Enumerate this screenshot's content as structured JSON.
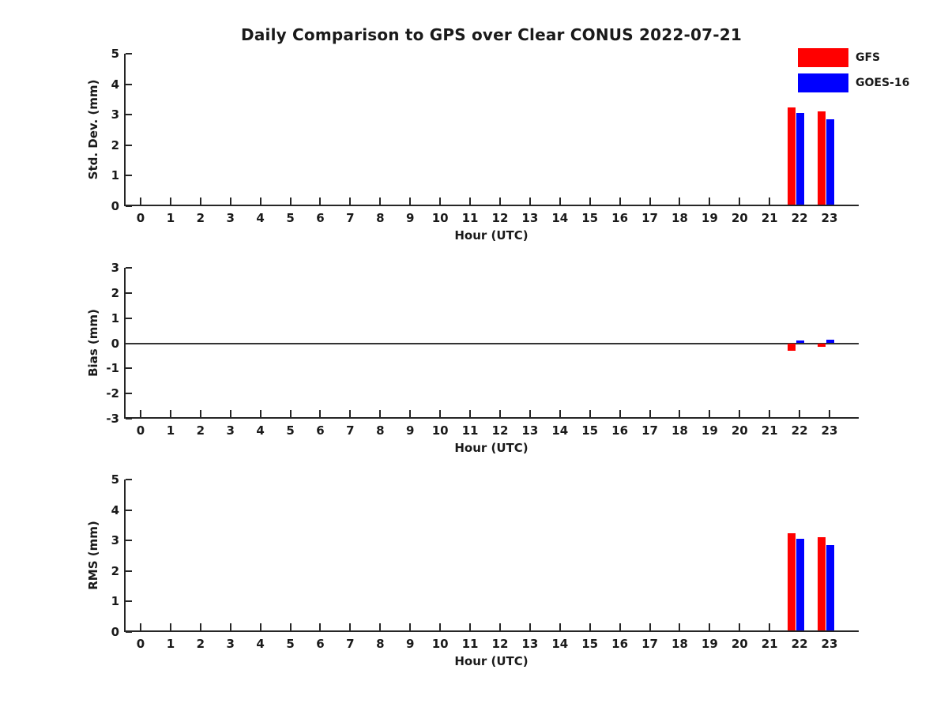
{
  "title": "Daily Comparison to GPS over Clear CONUS 2022-07-21",
  "legend": {
    "position": "top-right-outside",
    "items": [
      {
        "label": "GFS",
        "color": "#ff0000"
      },
      {
        "label": "GOES-16",
        "color": "#0000ff"
      }
    ]
  },
  "chart_data": [
    {
      "type": "bar",
      "panel": "std_dev",
      "ylabel": "Std. Dev. (mm)",
      "xlabel": "Hour (UTC)",
      "ylim": [
        0,
        5
      ],
      "yticks": [
        0,
        1,
        2,
        3,
        4,
        5
      ],
      "grid": false,
      "categories": [
        "0",
        "1",
        "2",
        "3",
        "4",
        "5",
        "6",
        "7",
        "8",
        "9",
        "10",
        "11",
        "12",
        "13",
        "14",
        "15",
        "16",
        "17",
        "18",
        "19",
        "20",
        "21",
        "22",
        "23"
      ],
      "series": [
        {
          "name": "GFS",
          "color": "#ff0000",
          "values": [
            null,
            null,
            null,
            null,
            null,
            null,
            null,
            null,
            null,
            null,
            null,
            null,
            null,
            null,
            null,
            null,
            null,
            null,
            null,
            null,
            null,
            null,
            3.25,
            3.1
          ]
        },
        {
          "name": "GOES-16",
          "color": "#0000ff",
          "values": [
            null,
            null,
            null,
            null,
            null,
            null,
            null,
            null,
            null,
            null,
            null,
            null,
            null,
            null,
            null,
            null,
            null,
            null,
            null,
            null,
            null,
            null,
            3.05,
            2.85
          ]
        }
      ]
    },
    {
      "type": "bar",
      "panel": "bias",
      "ylabel": "Bias (mm)",
      "xlabel": "Hour (UTC)",
      "ylim": [
        -3,
        3
      ],
      "yticks": [
        -3,
        -2,
        -1,
        0,
        1,
        2,
        3
      ],
      "zero_line": true,
      "grid": false,
      "categories": [
        "0",
        "1",
        "2",
        "3",
        "4",
        "5",
        "6",
        "7",
        "8",
        "9",
        "10",
        "11",
        "12",
        "13",
        "14",
        "15",
        "16",
        "17",
        "18",
        "19",
        "20",
        "21",
        "22",
        "23"
      ],
      "series": [
        {
          "name": "GFS",
          "color": "#ff0000",
          "values": [
            null,
            null,
            null,
            null,
            null,
            null,
            null,
            null,
            null,
            null,
            null,
            null,
            null,
            null,
            null,
            null,
            null,
            null,
            null,
            null,
            null,
            null,
            -0.3,
            -0.15
          ]
        },
        {
          "name": "GOES-16",
          "color": "#0000ff",
          "values": [
            null,
            null,
            null,
            null,
            null,
            null,
            null,
            null,
            null,
            null,
            null,
            null,
            null,
            null,
            null,
            null,
            null,
            null,
            null,
            null,
            null,
            null,
            0.1,
            0.15
          ]
        }
      ]
    },
    {
      "type": "bar",
      "panel": "rms",
      "ylabel": "RMS (mm)",
      "xlabel": "Hour (UTC)",
      "ylim": [
        0,
        5
      ],
      "yticks": [
        0,
        1,
        2,
        3,
        4,
        5
      ],
      "grid": false,
      "categories": [
        "0",
        "1",
        "2",
        "3",
        "4",
        "5",
        "6",
        "7",
        "8",
        "9",
        "10",
        "11",
        "12",
        "13",
        "14",
        "15",
        "16",
        "17",
        "18",
        "19",
        "20",
        "21",
        "22",
        "23"
      ],
      "series": [
        {
          "name": "GFS",
          "color": "#ff0000",
          "values": [
            null,
            null,
            null,
            null,
            null,
            null,
            null,
            null,
            null,
            null,
            null,
            null,
            null,
            null,
            null,
            null,
            null,
            null,
            null,
            null,
            null,
            null,
            3.25,
            3.1
          ]
        },
        {
          "name": "GOES-16",
          "color": "#0000ff",
          "values": [
            null,
            null,
            null,
            null,
            null,
            null,
            null,
            null,
            null,
            null,
            null,
            null,
            null,
            null,
            null,
            null,
            null,
            null,
            null,
            null,
            null,
            null,
            3.05,
            2.85
          ]
        }
      ]
    }
  ]
}
